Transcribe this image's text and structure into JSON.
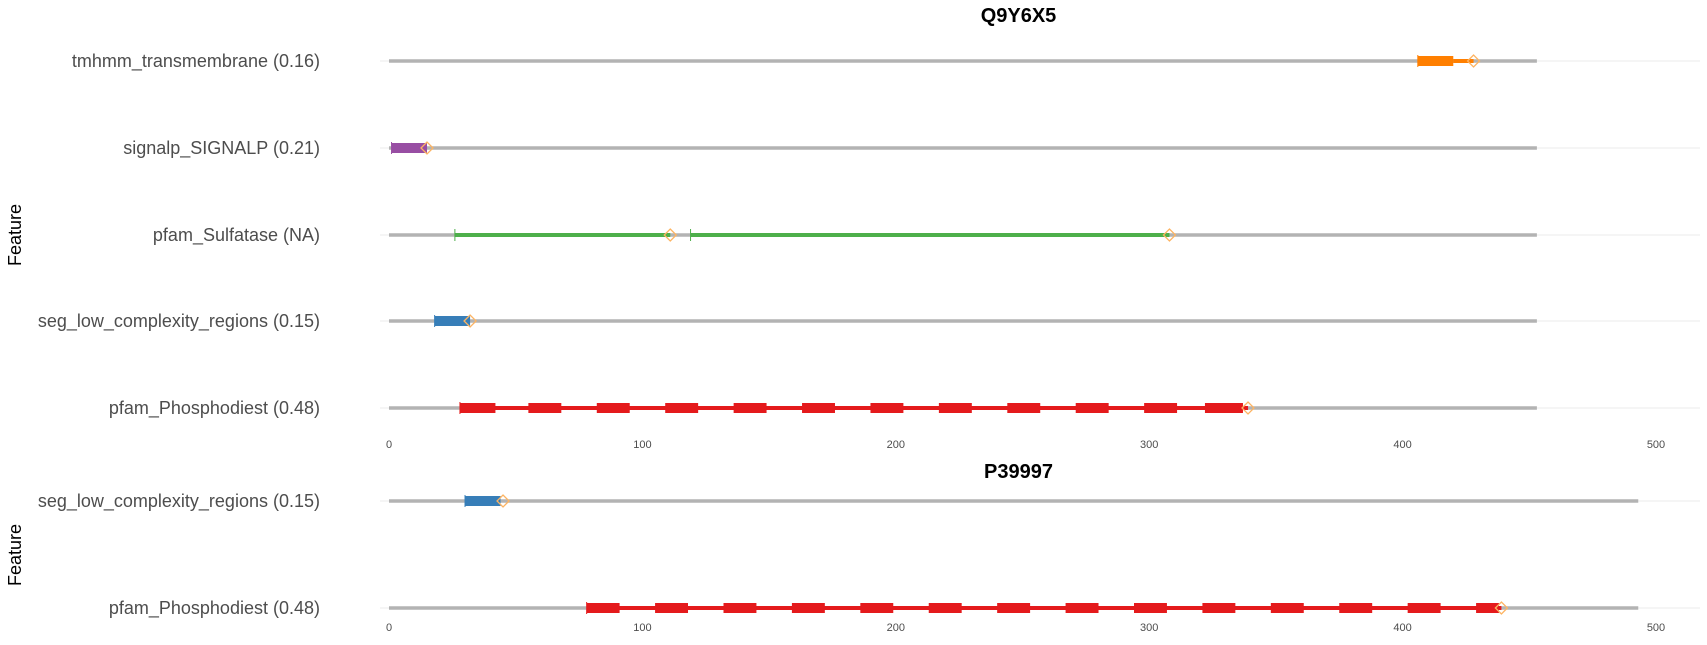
{
  "chart_data": [
    {
      "type": "feature-track",
      "title": "Q9Y6X5",
      "ylabel": "Feature",
      "xlim": [
        0,
        500
      ],
      "xticks": [
        0,
        100,
        200,
        300,
        400,
        500
      ],
      "grid": true,
      "backbone_end": 453,
      "tracks": [
        {
          "label": "tmhmm_transmembrane (0.16)",
          "color": "#ff7f00",
          "segments": [
            [
              406,
              420
            ]
          ],
          "lines": [
            [
              420,
              428
            ]
          ],
          "ticks": [
            406
          ],
          "diamonds": [
            428
          ]
        },
        {
          "label": "signalp_SIGNALP (0.21)",
          "color": "#984ea3",
          "segments": [
            [
              1,
              15
            ]
          ],
          "lines": [],
          "ticks": [
            1
          ],
          "diamonds": [
            15
          ]
        },
        {
          "label": "pfam_Sulfatase (NA)",
          "color": "#4daf4a",
          "segments": [],
          "lines": [
            [
              26,
              111
            ],
            [
              119,
              308
            ]
          ],
          "ticks": [
            26,
            119
          ],
          "diamonds": [
            111,
            308
          ]
        },
        {
          "label": "seg_low_complexity_regions (0.15)",
          "color": "#377eb8",
          "segments": [
            [
              18,
              32
            ]
          ],
          "lines": [],
          "ticks": [
            18
          ],
          "diamonds": [
            32
          ]
        },
        {
          "label": "pfam_Phosphodiest (0.48)",
          "color": "#e41a1c",
          "segments": [
            [
              28,
              42
            ],
            [
              55,
              68
            ],
            [
              82,
              95
            ],
            [
              109,
              122
            ],
            [
              136,
              149
            ],
            [
              163,
              176
            ],
            [
              190,
              203
            ],
            [
              217,
              230
            ],
            [
              244,
              257
            ],
            [
              271,
              284
            ],
            [
              298,
              311
            ],
            [
              322,
              337
            ]
          ],
          "lines": [
            [
              28,
              339
            ]
          ],
          "ticks": [
            28
          ],
          "diamonds": [
            339
          ]
        }
      ]
    },
    {
      "type": "feature-track",
      "title": "P39997",
      "ylabel": "Feature",
      "xlim": [
        0,
        500
      ],
      "xticks": [
        0,
        100,
        200,
        300,
        400,
        500
      ],
      "grid": true,
      "backbone_end": 493,
      "tracks": [
        {
          "label": "seg_low_complexity_regions (0.15)",
          "color": "#377eb8",
          "segments": [
            [
              30,
              44
            ]
          ],
          "lines": [],
          "ticks": [
            30
          ],
          "diamonds": [
            45
          ]
        },
        {
          "label": "pfam_Phosphodiest (0.48)",
          "color": "#e41a1c",
          "segments": [
            [
              78,
              91
            ],
            [
              105,
              118
            ],
            [
              132,
              145
            ],
            [
              159,
              172
            ],
            [
              186,
              199
            ],
            [
              213,
              226
            ],
            [
              240,
              253
            ],
            [
              267,
              280
            ],
            [
              294,
              307
            ],
            [
              321,
              334
            ],
            [
              348,
              361
            ],
            [
              375,
              388
            ],
            [
              402,
              415
            ],
            [
              429,
              438
            ]
          ],
          "lines": [
            [
              78,
              439
            ]
          ],
          "ticks": [
            78
          ],
          "diamonds": [
            439
          ]
        }
      ]
    }
  ]
}
